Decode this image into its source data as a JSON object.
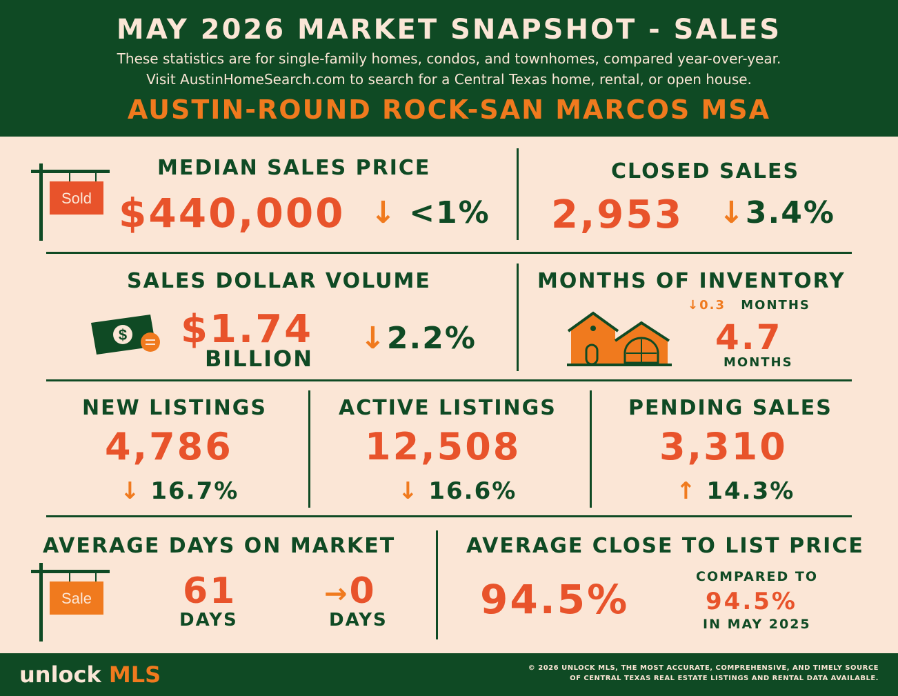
{
  "header": {
    "title": "MAY 2026 MARKET SNAPSHOT - SALES",
    "subtitle_line1": "These statistics are for single-family homes, condos, and townhomes, compared year-over-year.",
    "subtitle_line2": "Visit AustinHomeSearch.com to search for a Central Texas home, rental, or open house.",
    "region": "AUSTIN-ROUND ROCK-SAN MARCOS MSA"
  },
  "median_price": {
    "label": "MEDIAN SALES PRICE",
    "value": "$440,000",
    "arrow": "↓",
    "change": "<1%",
    "sign_text": "Sold"
  },
  "closed_sales": {
    "label": "CLOSED SALES",
    "value": "2,953",
    "arrow": "↓",
    "change": "3.4%"
  },
  "dollar_volume": {
    "label": "SALES DOLLAR VOLUME",
    "value": "$1.74",
    "unit": "BILLION",
    "arrow": "↓",
    "change": "2.2%"
  },
  "inventory": {
    "label": "MONTHS OF INVENTORY",
    "change_arrow": "↓",
    "change": "0.3",
    "change_unit": "MONTHS",
    "value": "4.7",
    "unit": "MONTHS"
  },
  "new_listings": {
    "label": "NEW LISTINGS",
    "value": "4,786",
    "arrow": "↓",
    "change": "16.7%"
  },
  "active_listings": {
    "label": "ACTIVE LISTINGS",
    "value": "12,508",
    "arrow": "↓",
    "change": "16.6%"
  },
  "pending_sales": {
    "label": "PENDING SALES",
    "value": "3,310",
    "arrow": "↑",
    "change": "14.3%"
  },
  "days_on_market": {
    "label": "AVERAGE DAYS ON MARKET",
    "value": "61",
    "unit": "DAYS",
    "change_arrow": "→",
    "change": "0",
    "change_unit": "DAYS",
    "sign_text": "Sale"
  },
  "close_to_list": {
    "label": "AVERAGE CLOSE TO LIST PRICE",
    "value": "94.5%",
    "compared_label": "COMPARED TO",
    "compared_value": "94.5%",
    "compared_period": "IN MAY 2025"
  },
  "footer": {
    "logo_word": "unlock",
    "logo_mls": "MLS",
    "copyright_line1": "© 2026 UNLOCK MLS, THE MOST ACCURATE, COMPREHENSIVE, AND TIMELY SOURCE",
    "copyright_line2": "OF CENTRAL TEXAS REAL ESTATE LISTINGS AND RENTAL DATA AVAILABLE."
  },
  "colors": {
    "dark_green": "#0f4a24",
    "cream": "#fbe6d6",
    "red_orange": "#e8532b",
    "orange": "#f07a1e"
  },
  "icons": [
    "sold-sign-icon",
    "money-icon",
    "house-icon",
    "sale-sign-icon"
  ]
}
